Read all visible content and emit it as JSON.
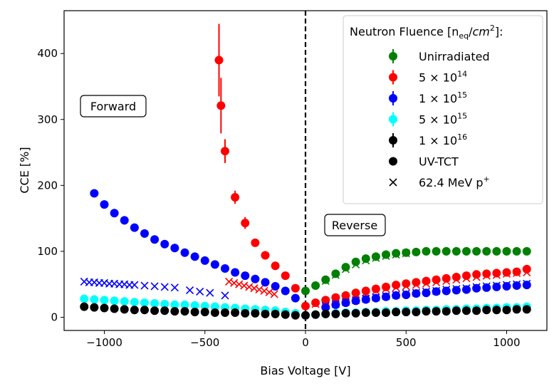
{
  "chart_data": {
    "type": "scatter",
    "title": "",
    "xlabel": "Bias Voltage [V]",
    "ylabel": "CCE [%]",
    "xlim": [
      -1200,
      1200
    ],
    "ylim": [
      -20,
      465
    ],
    "xticks": [
      -1000,
      -500,
      0,
      500,
      1000
    ],
    "yticks": [
      0,
      100,
      200,
      300,
      400
    ],
    "grid": false,
    "legend_placement": "upper-right",
    "legend_title": "Neutron Fluence [n_eq/cm^2]:",
    "annotations": [
      "Forward",
      "Reverse"
    ],
    "vline_x": 0,
    "colors": {
      "unirradiated": "#008000",
      "f5e14": "#ff0000",
      "f1e15": "#0000ff",
      "f5e15": "#00ffff",
      "f1e16": "#000000"
    },
    "series": [
      {
        "name": "Unirradiated",
        "marker": "circle",
        "color": "#008000",
        "x": [
          0,
          50,
          100,
          150,
          200,
          250,
          300,
          350,
          400,
          450,
          500,
          550,
          600,
          650,
          700,
          750,
          800,
          850,
          900,
          950,
          1000,
          1050,
          1100
        ],
        "y": [
          40,
          48,
          57,
          66,
          76,
          84,
          89,
          92,
          95,
          97,
          98,
          99,
          100,
          100,
          100,
          100,
          100,
          100,
          100,
          100,
          100,
          100,
          100
        ]
      },
      {
        "name": "5e14 forward",
        "marker": "circle",
        "color": "#ff0000",
        "x": [
          -50,
          -100,
          -150,
          -200,
          -250,
          -300,
          -350,
          -400,
          -420,
          -430
        ],
        "y": [
          44,
          63,
          78,
          94,
          113,
          143,
          182,
          252,
          321,
          390
        ],
        "err": [
          3,
          4,
          5,
          6,
          6,
          9,
          10,
          18,
          42,
          55
        ]
      },
      {
        "name": "5e14 reverse",
        "marker": "circle",
        "color": "#ff0000",
        "x": [
          0,
          50,
          100,
          150,
          200,
          250,
          300,
          350,
          400,
          450,
          500,
          550,
          600,
          650,
          700,
          750,
          800,
          850,
          900,
          950,
          1000,
          1050,
          1100
        ],
        "y": [
          17,
          22,
          26,
          30,
          33,
          37,
          40,
          43,
          46,
          49,
          51,
          53,
          55,
          57,
          59,
          61,
          63,
          65,
          66,
          67,
          68,
          69,
          73
        ]
      },
      {
        "name": "1e15 forward",
        "marker": "circle",
        "color": "#0000ff",
        "x": [
          -50,
          -100,
          -150,
          -200,
          -250,
          -300,
          -350,
          -400,
          -450,
          -500,
          -550,
          -600,
          -650,
          -700,
          -750,
          -800,
          -850,
          -900,
          -950,
          -1000,
          -1050
        ],
        "y": [
          29,
          40,
          47,
          53,
          58,
          63,
          68,
          74,
          80,
          86,
          92,
          98,
          105,
          111,
          118,
          127,
          136,
          147,
          158,
          171,
          188
        ]
      },
      {
        "name": "1e15 reverse",
        "marker": "circle",
        "color": "#0000ff",
        "x": [
          100,
          150,
          200,
          250,
          300,
          350,
          400,
          450,
          500,
          550,
          600,
          650,
          700,
          750,
          800,
          850,
          900,
          950,
          1000,
          1050,
          1100
        ],
        "y": [
          15,
          19,
          22,
          25,
          27,
          29,
          31,
          33,
          34,
          36,
          37,
          39,
          40,
          41,
          42,
          44,
          45,
          46,
          47,
          48,
          49
        ]
      },
      {
        "name": "5e15 forward",
        "marker": "circle",
        "color": "#00ffff",
        "x": [
          -50,
          -100,
          -150,
          -200,
          -250,
          -300,
          -350,
          -400,
          -450,
          -500,
          -550,
          -600,
          -650,
          -700,
          -750,
          -800,
          -850,
          -900,
          -950,
          -1000,
          -1050,
          -1100
        ],
        "y": [
          6,
          8,
          10,
          11,
          12,
          13,
          14,
          15,
          16,
          17,
          18,
          19,
          19,
          20,
          21,
          22,
          23,
          24,
          25,
          26,
          27,
          28
        ]
      },
      {
        "name": "5e15 reverse",
        "marker": "circle",
        "color": "#00ffff",
        "x": [
          0,
          50,
          100,
          150,
          200,
          250,
          300,
          350,
          400,
          450,
          500,
          550,
          600,
          650,
          700,
          750,
          800,
          850,
          900,
          950,
          1000,
          1050,
          1100
        ],
        "y": [
          3,
          4,
          5,
          6,
          7,
          7,
          8,
          8,
          9,
          9,
          10,
          10,
          11,
          11,
          12,
          12,
          13,
          13,
          14,
          14,
          15,
          15,
          16
        ]
      },
      {
        "name": "1e16 forward",
        "marker": "circle",
        "color": "#000000",
        "x": [
          -50,
          -100,
          -150,
          -200,
          -250,
          -300,
          -350,
          -400,
          -450,
          -500,
          -550,
          -600,
          -650,
          -700,
          -750,
          -800,
          -850,
          -900,
          -950,
          -1000,
          -1050,
          -1100
        ],
        "y": [
          3,
          4,
          5,
          5,
          6,
          6,
          7,
          7,
          7,
          8,
          8,
          9,
          9,
          10,
          10,
          11,
          11,
          12,
          13,
          14,
          15,
          16
        ]
      },
      {
        "name": "1e16 reverse",
        "marker": "circle",
        "color": "#000000",
        "x": [
          0,
          50,
          100,
          150,
          200,
          250,
          300,
          350,
          400,
          450,
          500,
          550,
          600,
          650,
          700,
          750,
          800,
          850,
          900,
          950,
          1000,
          1050,
          1100
        ],
        "y": [
          3,
          4,
          5,
          5,
          6,
          6,
          7,
          7,
          7,
          8,
          8,
          8,
          9,
          9,
          9,
          10,
          10,
          10,
          11,
          11,
          11,
          12,
          12
        ]
      },
      {
        "name": "p+ 1e15 forward",
        "marker": "x",
        "color": "#0000ff",
        "x": [
          -1100,
          -1075,
          -1050,
          -1025,
          -1000,
          -975,
          -950,
          -925,
          -900,
          -875,
          -850,
          -800,
          -750,
          -700,
          -650,
          -575,
          -525,
          -475,
          -400
        ],
        "y": [
          54,
          53,
          53,
          52,
          52,
          51,
          51,
          50,
          50,
          49,
          49,
          48,
          47,
          46,
          45,
          41,
          39,
          37,
          33
        ]
      },
      {
        "name": "p+ 5e14 forward",
        "marker": "x",
        "color": "#ff0000",
        "x": [
          -380,
          -355,
          -330,
          -305,
          -280,
          -255,
          -230,
          -205,
          -180,
          -155
        ],
        "y": [
          54,
          52,
          50,
          48,
          46,
          44,
          42,
          40,
          38,
          35
        ]
      },
      {
        "name": "p+ 5e14 reverse",
        "marker": "x",
        "color": "#ff0000",
        "x": [
          50,
          100,
          150,
          200,
          250,
          300,
          350,
          400,
          450,
          500,
          550,
          600,
          650,
          700,
          750,
          800,
          850,
          900,
          950,
          1000,
          1050,
          1100
        ],
        "y": [
          20,
          24,
          28,
          31,
          34,
          37,
          40,
          43,
          45,
          47,
          49,
          51,
          53,
          55,
          57,
          59,
          61,
          63,
          64,
          66,
          67,
          68
        ]
      },
      {
        "name": "p+ 1e15 reverse",
        "marker": "x",
        "color": "#0000ff",
        "x": [
          100,
          150,
          200,
          250,
          300,
          350,
          400,
          450,
          500,
          550,
          600,
          650,
          700,
          750,
          800,
          850,
          900,
          950,
          1000,
          1050,
          1100
        ],
        "y": [
          17,
          20,
          23,
          26,
          28,
          30,
          32,
          34,
          36,
          37,
          39,
          40,
          42,
          43,
          44,
          46,
          47,
          48,
          49,
          50,
          51
        ]
      },
      {
        "name": "Unirradiated p+",
        "marker": "x",
        "color": "#008000",
        "x": [
          100,
          150,
          200,
          250,
          300,
          350,
          400,
          450,
          500
        ],
        "y": [
          55,
          64,
          73,
          80,
          86,
          90,
          93,
          95,
          97
        ]
      }
    ],
    "legend": [
      {
        "label_main": "Unirradiated",
        "sup": "",
        "marker": "circle",
        "color": "#008000",
        "errorbar": true
      },
      {
        "label_main": "5 × 10",
        "sup": "14",
        "marker": "circle",
        "color": "#ff0000",
        "errorbar": true
      },
      {
        "label_main": "1 × 10",
        "sup": "15",
        "marker": "circle",
        "color": "#0000ff",
        "errorbar": true
      },
      {
        "label_main": "5 × 10",
        "sup": "15",
        "marker": "circle",
        "color": "#00ffff",
        "errorbar": true
      },
      {
        "label_main": "1 × 10",
        "sup": "16",
        "marker": "circle",
        "color": "#000000",
        "errorbar": true
      },
      {
        "label_main": "UV-TCT",
        "sup": "",
        "marker": "circle",
        "color": "#000000",
        "errorbar": false
      },
      {
        "label_main": "62.4 MeV p",
        "sup": "+",
        "marker": "x",
        "color": "#000000",
        "errorbar": false
      }
    ]
  }
}
